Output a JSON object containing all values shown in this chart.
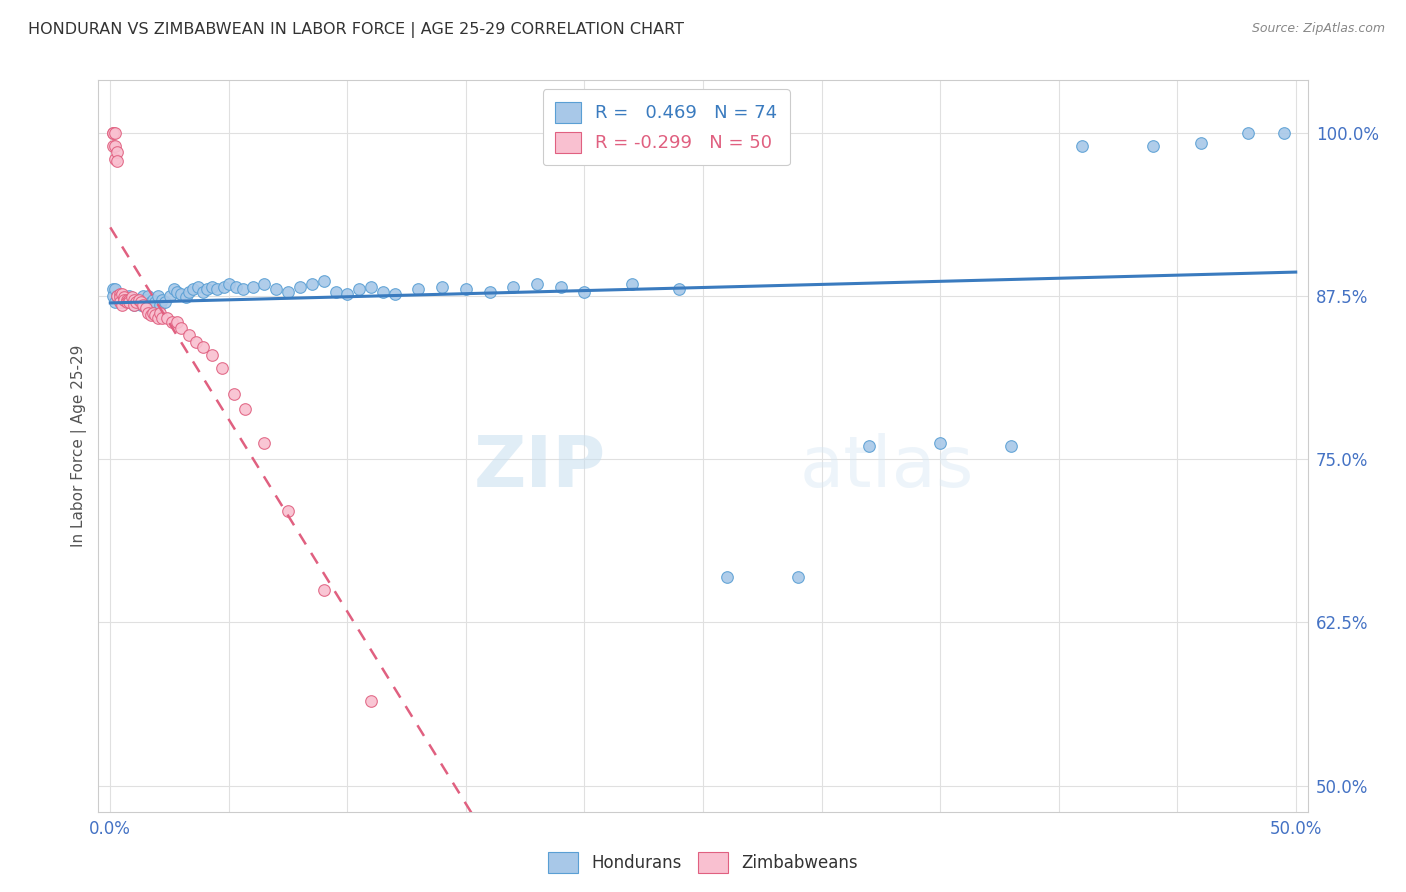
{
  "title": "HONDURAN VS ZIMBABWEAN IN LABOR FORCE | AGE 25-29 CORRELATION CHART",
  "source": "Source: ZipAtlas.com",
  "ylabel": "In Labor Force | Age 25-29",
  "xlim": [
    -0.005,
    0.505
  ],
  "ylim": [
    0.48,
    1.04
  ],
  "yticks": [
    0.5,
    0.625,
    0.75,
    0.875,
    1.0
  ],
  "ytick_labels": [
    "50.0%",
    "62.5%",
    "75.0%",
    "87.5%",
    "100.0%"
  ],
  "xticks": [
    0.0,
    0.05,
    0.1,
    0.15,
    0.2,
    0.25,
    0.3,
    0.35,
    0.4,
    0.45,
    0.5
  ],
  "xtick_labels": [
    "0.0%",
    "",
    "",
    "",
    "",
    "",
    "",
    "",
    "",
    "",
    "50.0%"
  ],
  "honduran_color": "#a8c8e8",
  "honduran_edge_color": "#5a9fd4",
  "zimbabwean_color": "#f9c0d0",
  "zimbabwean_edge_color": "#e06080",
  "trendline_honduran_color": "#3a7bbf",
  "trendline_zimbabwean_color": "#e06080",
  "R_honduran": 0.469,
  "N_honduran": 74,
  "R_zimbabwean": -0.299,
  "N_zimbabwean": 50,
  "watermark_zip": "ZIP",
  "watermark_atlas": "atlas",
  "background_color": "#ffffff",
  "grid_color": "#e0e0e0",
  "honduran_x": [
    0.001,
    0.001,
    0.002,
    0.002,
    0.003,
    0.004,
    0.005,
    0.006,
    0.007,
    0.008,
    0.009,
    0.01,
    0.011,
    0.012,
    0.013,
    0.014,
    0.015,
    0.016,
    0.017,
    0.018,
    0.019,
    0.02,
    0.021,
    0.022,
    0.023,
    0.025,
    0.027,
    0.028,
    0.03,
    0.032,
    0.033,
    0.035,
    0.037,
    0.039,
    0.041,
    0.043,
    0.045,
    0.048,
    0.05,
    0.053,
    0.056,
    0.06,
    0.065,
    0.07,
    0.075,
    0.08,
    0.085,
    0.09,
    0.095,
    0.1,
    0.105,
    0.11,
    0.115,
    0.12,
    0.13,
    0.14,
    0.15,
    0.16,
    0.17,
    0.18,
    0.19,
    0.2,
    0.22,
    0.24,
    0.26,
    0.29,
    0.32,
    0.35,
    0.38,
    0.41,
    0.44,
    0.46,
    0.48,
    0.495
  ],
  "honduran_y": [
    0.88,
    0.875,
    0.88,
    0.87,
    0.875,
    0.872,
    0.87,
    0.875,
    0.872,
    0.875,
    0.87,
    0.868,
    0.872,
    0.87,
    0.868,
    0.875,
    0.872,
    0.875,
    0.87,
    0.872,
    0.87,
    0.875,
    0.868,
    0.872,
    0.87,
    0.875,
    0.88,
    0.878,
    0.876,
    0.874,
    0.878,
    0.88,
    0.882,
    0.878,
    0.88,
    0.882,
    0.88,
    0.882,
    0.884,
    0.882,
    0.88,
    0.882,
    0.884,
    0.88,
    0.878,
    0.882,
    0.884,
    0.886,
    0.878,
    0.876,
    0.88,
    0.882,
    0.878,
    0.876,
    0.88,
    0.882,
    0.88,
    0.878,
    0.882,
    0.884,
    0.882,
    0.878,
    0.884,
    0.88,
    0.66,
    0.66,
    0.76,
    0.762,
    0.76,
    0.99,
    0.99,
    0.992,
    1.0,
    1.0
  ],
  "zimbabwean_x": [
    0.001,
    0.001,
    0.001,
    0.002,
    0.002,
    0.002,
    0.003,
    0.003,
    0.003,
    0.004,
    0.004,
    0.004,
    0.005,
    0.005,
    0.006,
    0.006,
    0.007,
    0.007,
    0.008,
    0.008,
    0.009,
    0.01,
    0.01,
    0.011,
    0.012,
    0.013,
    0.014,
    0.015,
    0.016,
    0.017,
    0.018,
    0.019,
    0.02,
    0.021,
    0.022,
    0.024,
    0.026,
    0.028,
    0.03,
    0.033,
    0.036,
    0.039,
    0.043,
    0.047,
    0.052,
    0.057,
    0.065,
    0.075,
    0.09,
    0.11
  ],
  "zimbabwean_y": [
    1.0,
    1.0,
    0.99,
    1.0,
    0.99,
    0.98,
    0.985,
    0.978,
    0.875,
    0.876,
    0.874,
    0.87,
    0.876,
    0.868,
    0.874,
    0.872,
    0.872,
    0.87,
    0.872,
    0.87,
    0.874,
    0.872,
    0.868,
    0.87,
    0.872,
    0.87,
    0.868,
    0.866,
    0.862,
    0.86,
    0.862,
    0.86,
    0.858,
    0.862,
    0.858,
    0.858,
    0.855,
    0.855,
    0.85,
    0.845,
    0.84,
    0.836,
    0.83,
    0.82,
    0.8,
    0.788,
    0.762,
    0.71,
    0.65,
    0.565
  ]
}
